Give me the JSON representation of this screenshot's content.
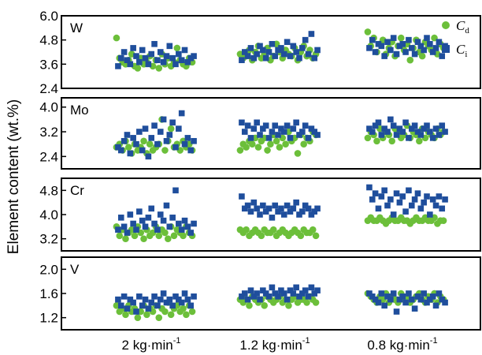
{
  "chart_data": {
    "type": "scatter",
    "ylabel": "Element content (wt.%)",
    "categories": [
      "2 kg·min",
      "1.2 kg·min",
      "0.8 kg·min"
    ],
    "category_superscript": "-1",
    "legend": [
      {
        "symbol": "C",
        "subscript": "d",
        "marker": "circle",
        "color": "#6cbf3a"
      },
      {
        "symbol": "C",
        "subscript": "i",
        "marker": "square",
        "color": "#1f4e9c"
      }
    ],
    "colors": {
      "Cd": "#6cbf3a",
      "Ci": "#1f4e9c"
    },
    "panels": [
      {
        "label": "W",
        "ylim": [
          2.4,
          6.0
        ],
        "yticks": [
          "6.0",
          "4.8",
          "3.6",
          "2.4"
        ],
        "series": [
          {
            "name": "Cd",
            "groups": [
              [
                4.9,
                3.9,
                3.7,
                3.6,
                3.8,
                4.1,
                3.5,
                3.4,
                3.9,
                3.6,
                3.7,
                4.0,
                3.5,
                3.8,
                3.4,
                4.1,
                3.6,
                3.9,
                3.5,
                3.7,
                4.4,
                3.8,
                3.6,
                3.5,
                3.9,
                3.7
              ],
              [
                4.1,
                3.9,
                4.0,
                4.3,
                3.8,
                4.2,
                4.5,
                3.9,
                4.1,
                4.4,
                3.8,
                4.0,
                4.6,
                4.2,
                3.9,
                4.3,
                4.1,
                4.0,
                4.4,
                3.8,
                4.2,
                4.5,
                4.0,
                4.3,
                3.9,
                4.1
              ],
              [
                5.2,
                4.5,
                4.9,
                4.2,
                4.6,
                4.8,
                4.1,
                4.4,
                4.7,
                4.0,
                4.5,
                4.9,
                4.3,
                4.6,
                3.8,
                4.4,
                4.8,
                4.2,
                4.0,
                4.7,
                4.5,
                4.3,
                4.9,
                4.1,
                4.6,
                4.4
              ]
            ]
          },
          {
            "name": "Ci",
            "groups": [
              [
                3.5,
                3.9,
                4.2,
                3.8,
                3.6,
                4.4,
                4.0,
                3.7,
                4.3,
                3.9,
                3.6,
                4.1,
                4.6,
                3.8,
                4.2,
                3.7,
                4.0,
                4.5,
                3.9,
                3.6,
                4.1,
                3.8,
                4.3,
                3.7,
                3.9,
                4.0
              ],
              [
                3.8,
                4.2,
                4.0,
                4.4,
                3.9,
                4.1,
                4.5,
                4.3,
                3.9,
                4.2,
                4.6,
                4.0,
                4.3,
                4.4,
                4.1,
                4.7,
                4.0,
                4.5,
                4.2,
                3.9,
                4.4,
                4.8,
                4.1,
                5.1,
                3.9,
                4.3
              ],
              [
                4.4,
                4.8,
                4.2,
                4.6,
                4.5,
                4.0,
                4.7,
                4.3,
                4.9,
                4.1,
                4.5,
                4.6,
                4.2,
                4.8,
                4.4,
                4.1,
                4.7,
                4.5,
                4.3,
                4.9,
                4.6,
                4.2,
                4.4,
                4.7,
                4.0,
                4.5
              ]
            ]
          }
        ]
      },
      {
        "label": "Mo",
        "ylim": [
          2.0,
          4.3
        ],
        "yticks": [
          "4.0",
          "3.2",
          "2.4"
        ],
        "series": [
          {
            "name": "Cd",
            "groups": [
              [
                2.7,
                2.8,
                2.6,
                2.9,
                2.7,
                2.5,
                2.8,
                2.6,
                2.7,
                2.9,
                2.5,
                2.8,
                2.6,
                2.7,
                2.8,
                3.6,
                2.6,
                2.9,
                3.3,
                2.7,
                2.8,
                2.6,
                2.9,
                2.7,
                2.8,
                2.6
              ],
              [
                2.6,
                2.8,
                2.7,
                2.9,
                2.8,
                3.0,
                2.7,
                2.9,
                3.0,
                2.6,
                2.8,
                3.1,
                2.9,
                2.7,
                3.0,
                2.8,
                3.2,
                2.9,
                3.0,
                2.5,
                3.1,
                2.8,
                3.0,
                2.9,
                3.2,
                3.1
              ],
              [
                3.0,
                3.2,
                3.1,
                2.9,
                3.3,
                3.0,
                3.2,
                3.1,
                2.9,
                3.3,
                3.2,
                3.0,
                3.1,
                3.4,
                3.0,
                3.2,
                3.1,
                2.9,
                3.3,
                3.0,
                3.2,
                3.1,
                3.0,
                3.3,
                3.1,
                3.2
              ]
            ]
          },
          {
            "name": "Ci",
            "groups": [
              [
                2.7,
                2.6,
                2.9,
                3.1,
                2.5,
                3.0,
                2.8,
                3.2,
                2.6,
                3.3,
                2.4,
                3.0,
                3.4,
                2.8,
                3.2,
                3.6,
                2.9,
                3.1,
                3.5,
                2.7,
                3.3,
                3.8,
                2.8,
                3.0,
                2.6,
                2.9
              ],
              [
                3.5,
                3.2,
                3.4,
                3.0,
                3.3,
                3.5,
                3.1,
                3.3,
                3.4,
                3.0,
                3.2,
                3.4,
                3.1,
                3.3,
                3.2,
                3.4,
                3.0,
                3.3,
                3.5,
                3.1,
                3.2,
                3.4,
                3.0,
                3.3,
                3.2,
                3.1
              ],
              [
                3.3,
                3.2,
                3.4,
                3.5,
                3.1,
                3.3,
                3.2,
                3.6,
                3.4,
                3.1,
                3.3,
                3.2,
                3.5,
                3.0,
                3.3,
                3.4,
                3.2,
                3.1,
                3.3,
                3.4,
                3.2,
                3.0,
                3.3,
                3.1,
                3.4,
                3.2
              ]
            ]
          }
        ]
      },
      {
        "label": "Cr",
        "ylim": [
          2.8,
          5.2
        ],
        "yticks": [
          "4.8",
          "4.0",
          "3.2"
        ],
        "series": [
          {
            "name": "Cd",
            "groups": [
              [
                3.6,
                3.3,
                3.5,
                3.2,
                3.4,
                3.5,
                3.3,
                3.6,
                3.4,
                3.2,
                3.5,
                3.3,
                3.4,
                3.6,
                3.3,
                3.5,
                3.4,
                3.2,
                3.6,
                3.3,
                3.5,
                3.4,
                3.3,
                3.6,
                3.4,
                3.3
              ],
              [
                3.5,
                3.4,
                3.5,
                3.3,
                3.4,
                3.5,
                3.4,
                3.3,
                3.5,
                3.4,
                3.4,
                3.5,
                3.3,
                3.4,
                3.5,
                3.4,
                3.3,
                3.4,
                3.5,
                3.4,
                3.3,
                3.5,
                3.4,
                3.4,
                3.5,
                3.3
              ],
              [
                3.8,
                3.9,
                3.8,
                3.8,
                3.9,
                3.8,
                3.7,
                3.8,
                3.9,
                3.8,
                3.8,
                3.9,
                3.8,
                3.8,
                3.7,
                3.8,
                3.9,
                3.8,
                3.8,
                3.9,
                3.8,
                3.8,
                3.9,
                3.7,
                3.8,
                3.8
              ]
            ]
          },
          {
            "name": "Ci",
            "groups": [
              [
                3.5,
                3.9,
                3.6,
                3.4,
                4.0,
                3.7,
                3.5,
                4.1,
                3.8,
                3.6,
                3.9,
                4.2,
                3.7,
                3.5,
                4.0,
                3.8,
                4.3,
                3.6,
                3.9,
                4.8,
                3.7,
                3.5,
                3.8,
                3.6,
                3.4,
                3.7
              ],
              [
                4.6,
                4.2,
                4.3,
                4.1,
                4.4,
                4.2,
                4.0,
                4.3,
                4.1,
                4.2,
                3.9,
                4.3,
                4.1,
                4.2,
                4.0,
                4.3,
                4.1,
                4.2,
                4.4,
                4.0,
                4.1,
                4.3,
                4.2,
                4.0,
                4.1,
                4.2
              ],
              [
                4.9,
                4.5,
                4.7,
                4.2,
                4.6,
                4.8,
                4.3,
                4.5,
                4.0,
                4.7,
                4.4,
                4.6,
                4.1,
                4.8,
                4.3,
                4.5,
                4.7,
                4.2,
                4.4,
                4.6,
                4.0,
                4.5,
                4.3,
                4.6,
                4.2,
                4.5
              ]
            ]
          }
        ]
      },
      {
        "label": "V",
        "ylim": [
          1.0,
          2.2
        ],
        "yticks": [
          "2.0",
          "1.6",
          "1.2"
        ],
        "series": [
          {
            "name": "Cd",
            "groups": [
              [
                1.4,
                1.3,
                1.35,
                1.25,
                1.4,
                1.3,
                1.35,
                1.2,
                1.3,
                1.4,
                1.25,
                1.35,
                1.3,
                1.4,
                1.2,
                1.35,
                1.3,
                1.45,
                1.25,
                1.35,
                1.4,
                1.3,
                1.35,
                1.25,
                1.4,
                1.3
              ],
              [
                1.5,
                1.45,
                1.5,
                1.4,
                1.55,
                1.5,
                1.45,
                1.5,
                1.4,
                1.55,
                1.5,
                1.45,
                1.5,
                1.55,
                1.45,
                1.5,
                1.4,
                1.5,
                1.55,
                1.45,
                1.5,
                1.5,
                1.45,
                1.55,
                1.5,
                1.45
              ],
              [
                1.6,
                1.55,
                1.5,
                1.45,
                1.55,
                1.5,
                1.6,
                1.45,
                1.55,
                1.5,
                1.45,
                1.6,
                1.5,
                1.55,
                1.45,
                1.5,
                1.55,
                1.6,
                1.5,
                1.45,
                1.55,
                1.5,
                1.6,
                1.45,
                1.55,
                1.5
              ]
            ]
          },
          {
            "name": "Ci",
            "groups": [
              [
                1.5,
                1.4,
                1.55,
                1.35,
                1.5,
                1.45,
                1.3,
                1.55,
                1.4,
                1.5,
                1.35,
                1.45,
                1.55,
                1.4,
                1.5,
                1.6,
                1.45,
                1.5,
                1.4,
                1.55,
                1.5,
                1.45,
                1.6,
                1.5,
                1.4,
                1.55
              ],
              [
                1.55,
                1.6,
                1.5,
                1.65,
                1.55,
                1.6,
                1.5,
                1.65,
                1.6,
                1.55,
                1.7,
                1.6,
                1.55,
                1.65,
                1.6,
                1.5,
                1.65,
                1.6,
                1.7,
                1.55,
                1.6,
                1.65,
                1.55,
                1.7,
                1.6,
                1.65
              ],
              [
                1.6,
                1.55,
                1.5,
                1.45,
                1.6,
                1.4,
                1.55,
                1.5,
                1.6,
                1.3,
                1.5,
                1.55,
                1.45,
                1.6,
                1.5,
                1.35,
                1.55,
                1.5,
                1.6,
                1.45,
                1.5,
                1.55,
                1.4,
                1.6,
                1.5,
                1.45
              ]
            ]
          }
        ]
      }
    ]
  }
}
